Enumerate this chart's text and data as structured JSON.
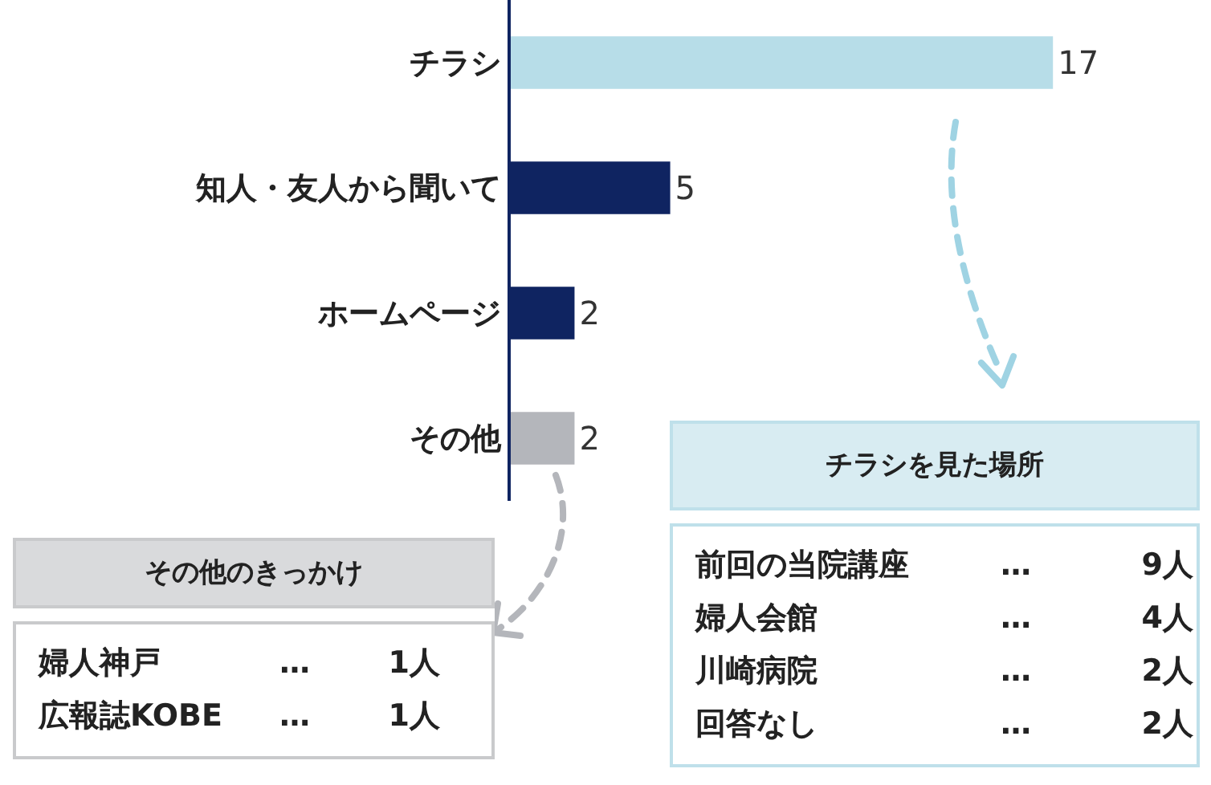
{
  "chart_data": [
    {
      "type": "bar",
      "orientation": "horizontal",
      "categories": [
        "チラシ",
        "知人・友人から聞いて",
        "ホームページ",
        "その他"
      ],
      "values": [
        17,
        5,
        2,
        2
      ],
      "colors": [
        "#b7dde8",
        "#0f2461",
        "#0f2461",
        "#b4b6bb"
      ],
      "data_labels": true
    },
    {
      "type": "other",
      "title": "その他のきっかけ",
      "annotations": [
        "婦人神戸 … 1人",
        "広報誌KOBE … 1人"
      ]
    },
    {
      "type": "other",
      "title": "チラシを見た場所",
      "annotations": [
        "前回の当院講座 … 9人",
        "婦人会館 … 4人",
        "川崎病院 … 2人",
        "回答なし … 2人"
      ]
    }
  ]
}
